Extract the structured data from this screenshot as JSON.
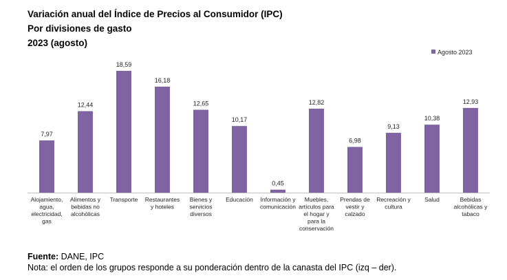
{
  "header": {
    "title_line1": "Variación anual del Índice de Precios al Consumidor (IPC)",
    "title_line2": "Por divisiones de gasto",
    "title_line3": "2023 (agosto)"
  },
  "footer": {
    "source_label": "Fuente:",
    "source_value": " DANE, IPC",
    "note": "Nota: el orden de los grupos responde a su ponderación dentro de la canasta del IPC (izq – der)."
  },
  "colors": {
    "bar": "#8064a2"
  },
  "chart_data": {
    "type": "bar",
    "categories": [
      [
        "Alojamiento,",
        "agua,",
        "electricidad,",
        "gas"
      ],
      [
        "Alimentos y",
        "bebidas no",
        "alcohólicas"
      ],
      [
        "Transporte"
      ],
      [
        "Restaurantes",
        "y hoteles"
      ],
      [
        "Bienes y",
        "servicios",
        "diversos"
      ],
      [
        "Educación"
      ],
      [
        "Información y",
        "comunicación"
      ],
      [
        "Muebles,",
        "artículos para",
        "el hogar y",
        "para la",
        "conservación"
      ],
      [
        "Prendas de",
        "vestir y",
        "calzado"
      ],
      [
        "Recreación y",
        "cultura"
      ],
      [
        "Salud"
      ],
      [
        "Bebidas",
        "alcohólicas y",
        "tabaco"
      ]
    ],
    "series": [
      {
        "name": "Agosto 2023",
        "values": [
          7.97,
          12.44,
          18.59,
          16.18,
          12.65,
          10.17,
          0.45,
          12.82,
          6.98,
          9.13,
          10.38,
          12.93
        ],
        "labels": [
          "7,97",
          "12,44",
          "18,59",
          "16,18",
          "12,65",
          "10,17",
          "0,45",
          "12,82",
          "6,98",
          "9,13",
          "10,38",
          "12,93"
        ]
      }
    ],
    "ylim": [
      0,
      18.59
    ],
    "grid": false,
    "legend_position": "top-right"
  }
}
